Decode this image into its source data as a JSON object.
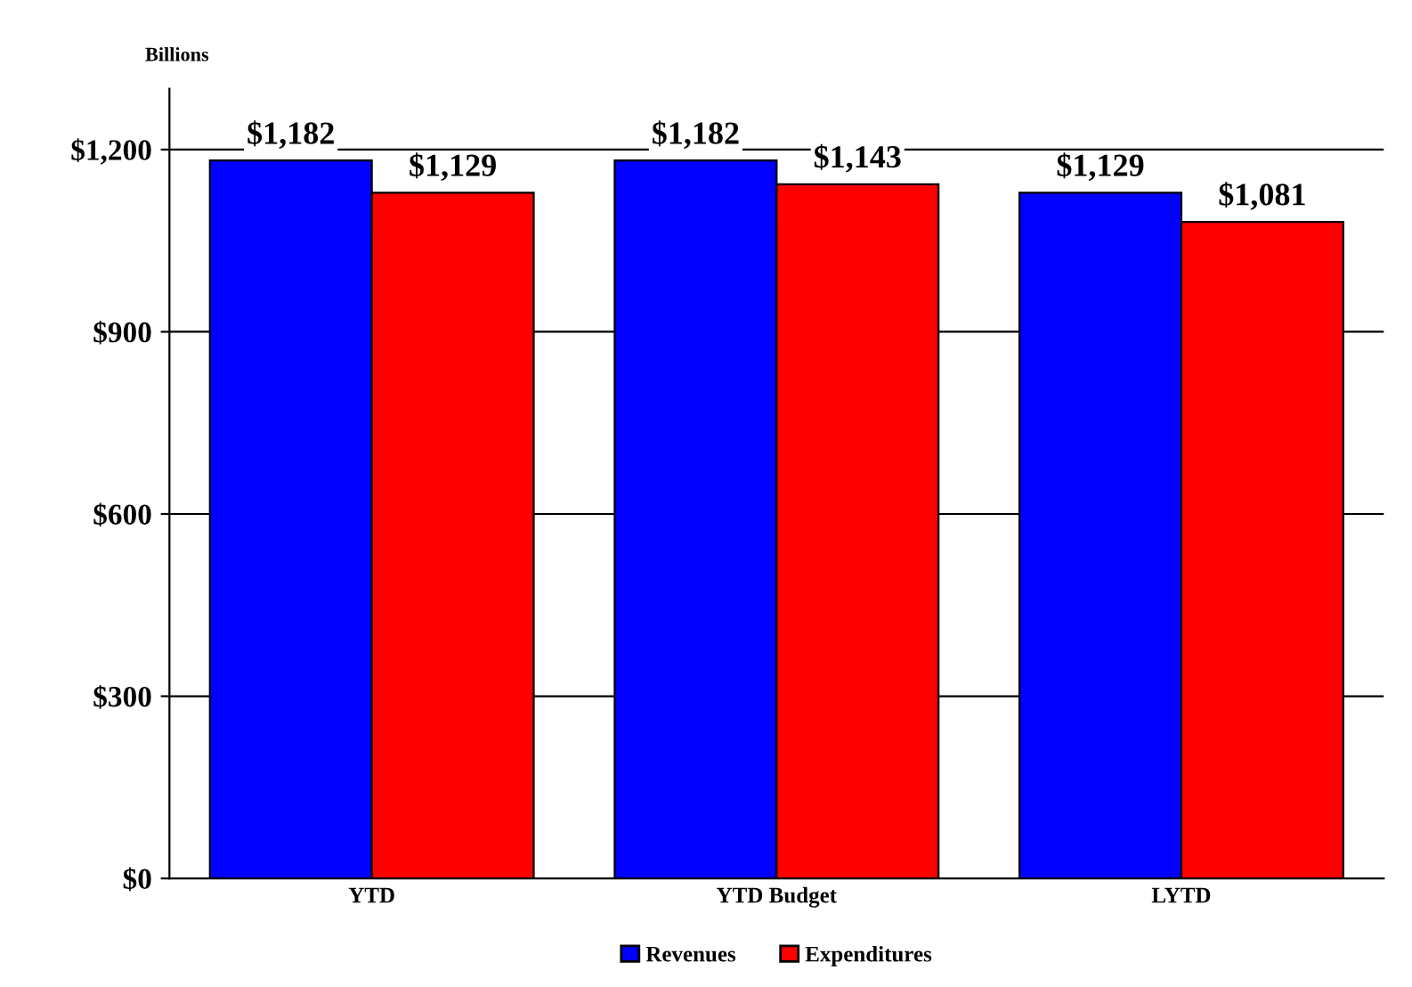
{
  "chart_data": {
    "type": "bar",
    "ylabel": "Billions",
    "categories": [
      "YTD",
      "YTD Budget",
      "LYTD"
    ],
    "series": [
      {
        "name": "Revenues",
        "color": "#0000ff",
        "values": [
          1182,
          1182,
          1129
        ],
        "value_labels": [
          "$1,182",
          "$1,182",
          "$1,129"
        ]
      },
      {
        "name": "Expenditures",
        "color": "#ff0000",
        "values": [
          1129,
          1143,
          1081
        ],
        "value_labels": [
          "$1,129",
          "$1,143",
          "$1,081"
        ]
      }
    ],
    "ylim": [
      0,
      1300
    ],
    "yticks": [
      {
        "value": 0,
        "label": "$0"
      },
      {
        "value": 300,
        "label": "$300"
      },
      {
        "value": 600,
        "label": "$600"
      },
      {
        "value": 900,
        "label": "$900"
      },
      {
        "value": 1200,
        "label": "$1,200"
      }
    ],
    "grid": "y",
    "legend": "bottom"
  }
}
